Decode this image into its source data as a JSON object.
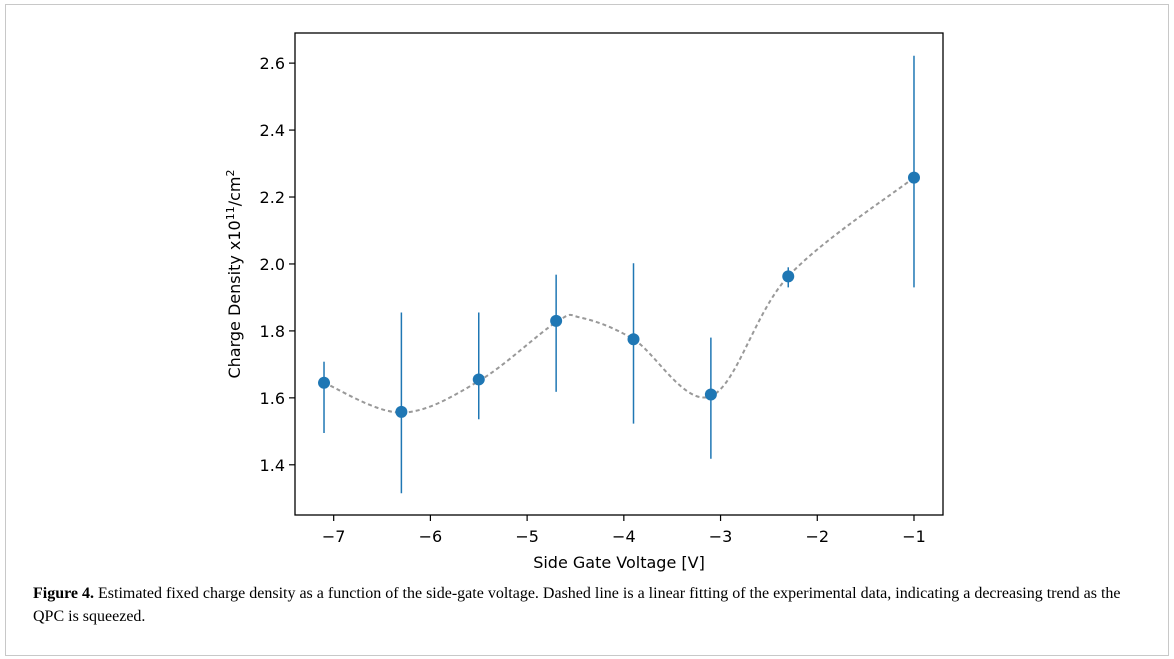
{
  "chart_data": {
    "type": "scatter",
    "xlabel": "Side Gate Voltage [V]",
    "ylabel": "Charge Density x10",
    "ylabel_sup": "11",
    "ylabel_unit": "/cm",
    "ylabel_unit_sup": "2",
    "xlim": [
      -7.4,
      -0.7
    ],
    "ylim": [
      1.25,
      2.69
    ],
    "xticks": [
      -7,
      -6,
      -5,
      -4,
      -3,
      -2,
      -1
    ],
    "xtick_labels": [
      "−7",
      "−6",
      "−5",
      "−4",
      "−3",
      "−2",
      "−1"
    ],
    "yticks": [
      1.4,
      1.6,
      1.8,
      2.0,
      2.2,
      2.4,
      2.6
    ],
    "ytick_labels": [
      "1.4",
      "1.6",
      "1.8",
      "2.0",
      "2.2",
      "2.4",
      "2.6"
    ],
    "grid": false,
    "series": [
      {
        "points": [
          {
            "x": -7.1,
            "y": 1.645,
            "y_low": 1.495,
            "y_high": 1.708
          },
          {
            "x": -6.3,
            "y": 1.558,
            "y_low": 1.315,
            "y_high": 1.855
          },
          {
            "x": -5.5,
            "y": 1.655,
            "y_low": 1.536,
            "y_high": 1.855
          },
          {
            "x": -4.7,
            "y": 1.83,
            "y_low": 1.618,
            "y_high": 1.968
          },
          {
            "x": -3.9,
            "y": 1.775,
            "y_low": 1.523,
            "y_high": 2.002
          },
          {
            "x": -3.1,
            "y": 1.61,
            "y_low": 1.418,
            "y_high": 1.78
          },
          {
            "x": -2.3,
            "y": 1.963,
            "y_low": 1.93,
            "y_high": 1.99
          },
          {
            "x": -1.0,
            "y": 2.258,
            "y_low": 1.93,
            "y_high": 2.622
          }
        ]
      },
      {
        "style": "dashed",
        "color": "#999999",
        "x": [
          -7.1,
          -6.3,
          -5.5,
          -4.7,
          -4.45,
          -3.9,
          -3.1,
          -2.3,
          -1.0
        ],
        "y": [
          1.645,
          1.556,
          1.65,
          1.826,
          1.84,
          1.775,
          1.605,
          1.963,
          2.258
        ]
      }
    ]
  },
  "colors": {
    "marker": "#1f77b4",
    "errorbar": "#1f77b4",
    "fit": "#999999",
    "axes": "#000000"
  },
  "caption": {
    "label": "Figure 4.",
    "text": " Estimated fixed charge density as a function of the side-gate voltage. Dashed line is a linear fitting of the experimental data, indicating a decreasing trend as the QPC is squeezed."
  }
}
